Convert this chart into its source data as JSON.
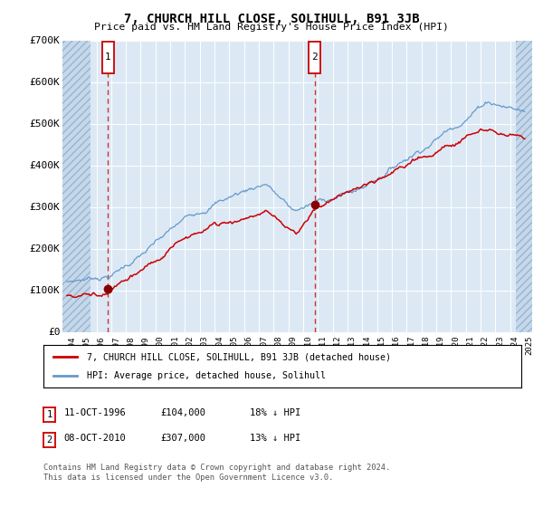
{
  "title": "7, CHURCH HILL CLOSE, SOLIHULL, B91 3JB",
  "subtitle": "Price paid vs. HM Land Registry's House Price Index (HPI)",
  "ylim": [
    0,
    700000
  ],
  "yticks": [
    0,
    100000,
    200000,
    300000,
    400000,
    500000,
    600000,
    700000
  ],
  "ytick_labels": [
    "£0",
    "£100K",
    "£200K",
    "£300K",
    "£400K",
    "£500K",
    "£600K",
    "£700K"
  ],
  "xlim_start": 1993.7,
  "xlim_end": 2025.5,
  "plot_bg_color": "#dce9f5",
  "grid_color": "#ffffff",
  "red_line_color": "#cc0000",
  "blue_line_color": "#6699cc",
  "point1_date": 1996.79,
  "point1_value": 104000,
  "point2_date": 2010.77,
  "point2_value": 307000,
  "vline_color": "#cc3333",
  "marker_color": "#880000",
  "legend_line1": "7, CHURCH HILL CLOSE, SOLIHULL, B91 3JB (detached house)",
  "legend_line2": "HPI: Average price, detached house, Solihull",
  "table_row1": [
    "1",
    "11-OCT-1996",
    "£104,000",
    "18% ↓ HPI"
  ],
  "table_row2": [
    "2",
    "08-OCT-2010",
    "£307,000",
    "13% ↓ HPI"
  ],
  "footer": "Contains HM Land Registry data © Crown copyright and database right 2024.\nThis data is licensed under the Open Government Licence v3.0.",
  "hatch_left_end": 1995.58,
  "hatch_right_start": 2024.42
}
